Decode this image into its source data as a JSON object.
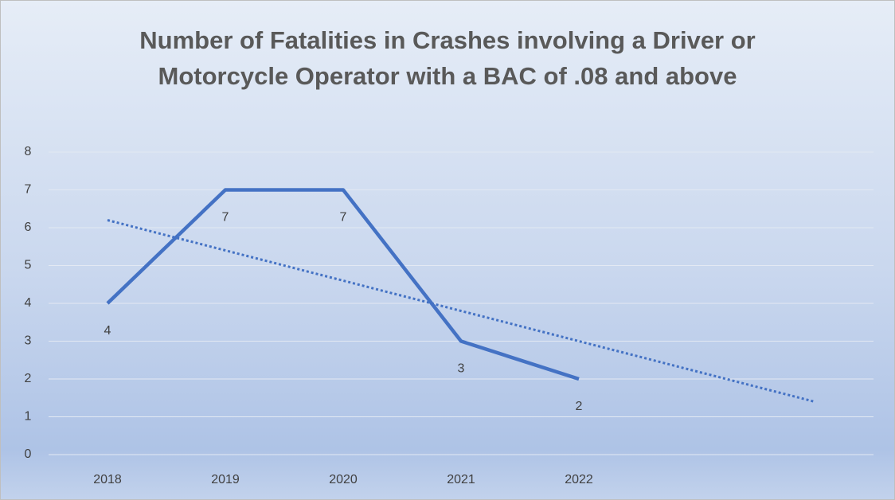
{
  "chart_data": {
    "type": "line",
    "title": "Number of Fatalities in Crashes involving a Driver or Motorcycle Operator with a BAC of .08 and above",
    "categories": [
      "2018",
      "2019",
      "2020",
      "2021",
      "2022",
      null,
      null
    ],
    "series": [
      {
        "color": "#4472c4",
        "style": "solid",
        "data_labels": true,
        "values": [
          4,
          7,
          7,
          3,
          2,
          null,
          null
        ]
      },
      {
        "color": "#4472c4",
        "style": "dotted",
        "data_labels": false,
        "values": [
          6.2,
          5.4,
          4.6,
          3.8,
          3.0,
          2.2,
          1.4
        ]
      }
    ],
    "ylim": [
      0,
      8
    ],
    "yticks": [
      0,
      1,
      2,
      3,
      4,
      5,
      6,
      7,
      8
    ],
    "grid": true
  }
}
